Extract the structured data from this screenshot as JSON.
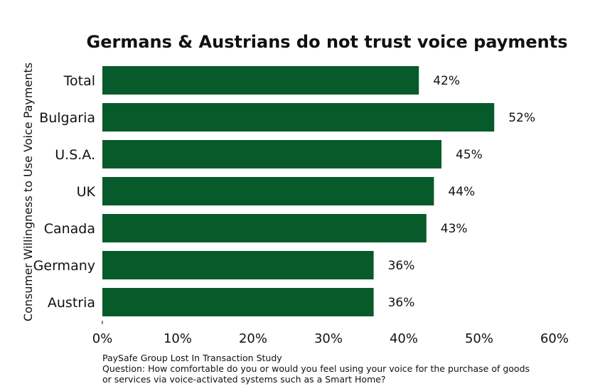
{
  "chart_data": {
    "type": "bar",
    "orientation": "horizontal",
    "title": "Germans & Austrians do not trust voice payments",
    "ylabel": "Consumer Willingness to Use Voice Payments",
    "xlabel": "",
    "categories": [
      "Total",
      "Bulgaria",
      "U.S.A.",
      "UK",
      "Canada",
      "Germany",
      "Austria"
    ],
    "values": [
      42,
      52,
      45,
      44,
      43,
      36,
      36
    ],
    "value_labels": [
      "42%",
      "52%",
      "45%",
      "44%",
      "43%",
      "36%",
      "36%"
    ],
    "xlim": [
      0,
      60
    ],
    "xticks": [
      0,
      10,
      20,
      30,
      40,
      50,
      60
    ],
    "xtick_labels": [
      "0%",
      "10%",
      "20%",
      "30%",
      "40%",
      "50%",
      "60%"
    ],
    "bar_color": "#075a2a",
    "grid": false,
    "legend": "none"
  },
  "footnote": {
    "source": "PaySafe Group Lost In Transaction Study",
    "question_line1": "Question: How comfortable do you or would you feel using your voice for the purchase of goods",
    "question_line2": "or services via voice-activated systems such as a Smart Home?"
  }
}
